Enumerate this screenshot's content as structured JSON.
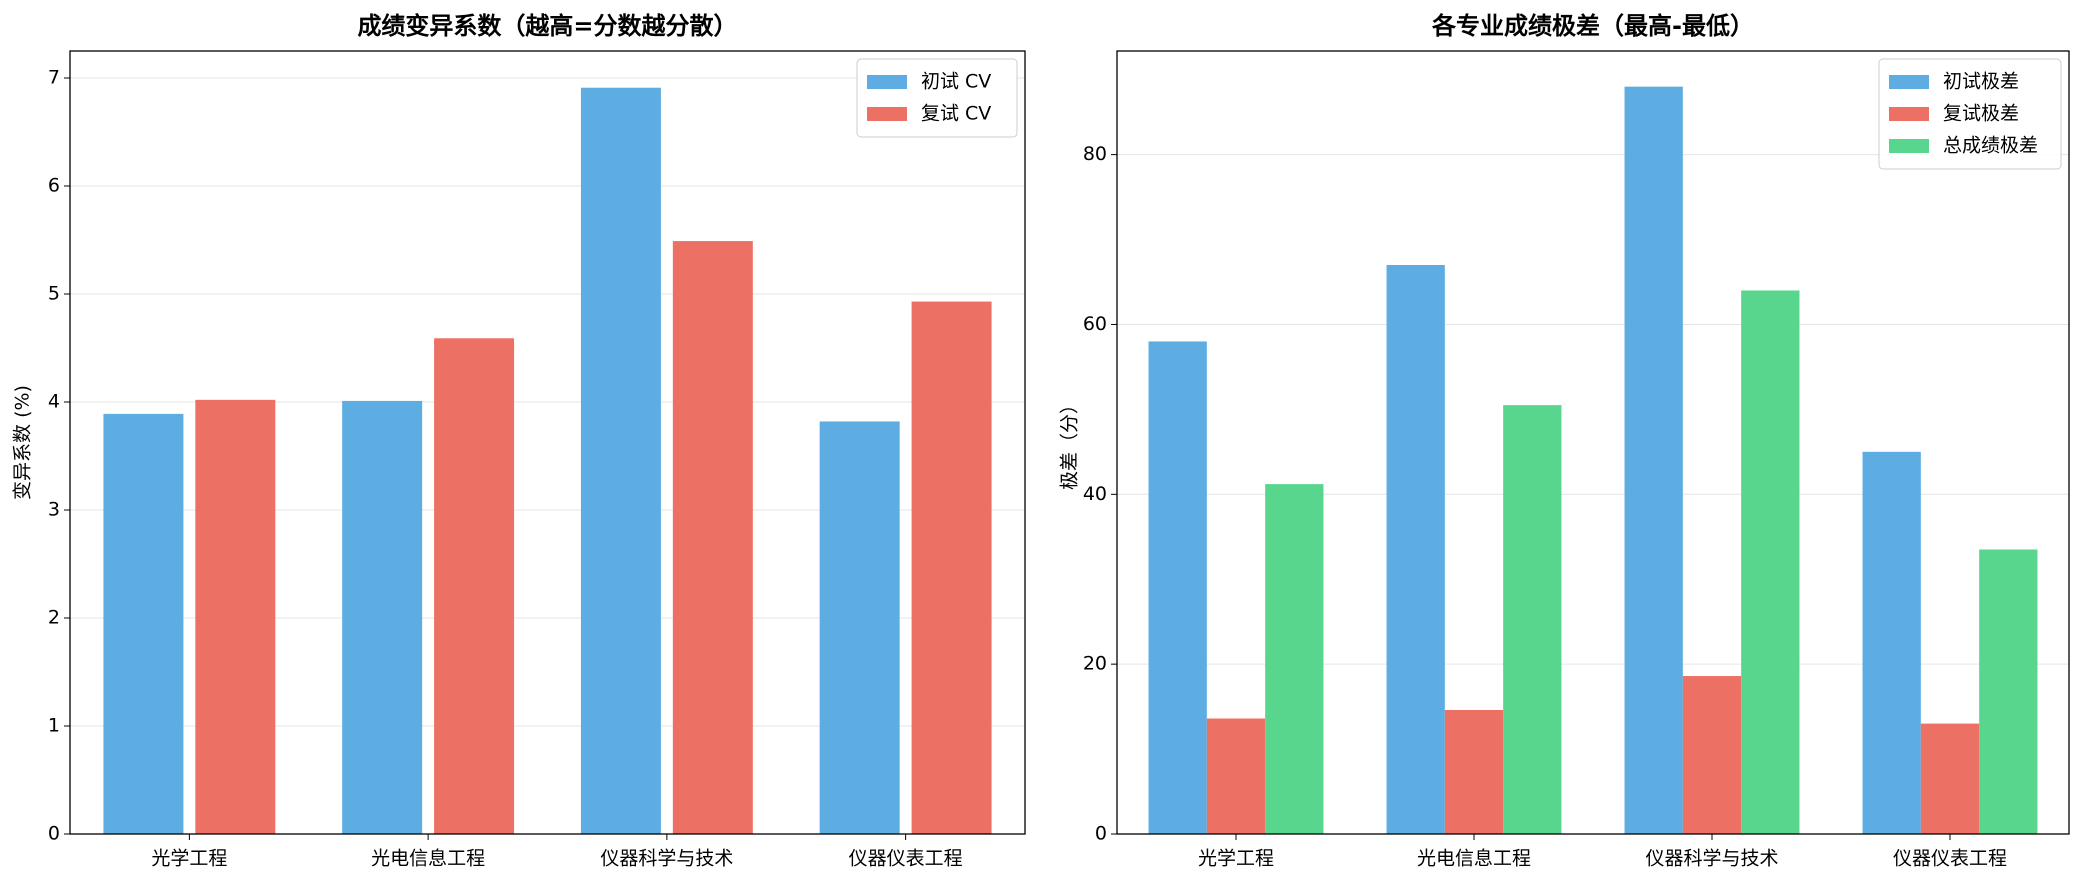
{
  "chart_data": [
    {
      "type": "bar",
      "title": "成绩变异系数（越高=分数越分散）",
      "y_label": "变异系数 (%)",
      "categories": [
        "光学工程",
        "光电信息工程",
        "仪器科学与技术",
        "仪器仪表工程"
      ],
      "series": [
        {
          "name": "初试 CV",
          "color": "#5dade2",
          "values": [
            3.89,
            4.01,
            6.91,
            3.82
          ]
        },
        {
          "name": "复试 CV",
          "color": "#ec7063",
          "values": [
            4.02,
            4.59,
            5.49,
            4.93
          ]
        }
      ],
      "ylim": [
        0,
        7.25
      ],
      "yticks": [
        0,
        1,
        2,
        3,
        4,
        5,
        6,
        7
      ],
      "grid": true,
      "legend": "upper-right"
    },
    {
      "type": "bar",
      "title": "各专业成绩极差（最高-最低）",
      "y_label": "极差（分）",
      "categories": [
        "光学工程",
        "光电信息工程",
        "仪器科学与技术",
        "仪器仪表工程"
      ],
      "series": [
        {
          "name": "初试极差",
          "color": "#5dade2",
          "values": [
            58,
            67,
            88,
            45
          ]
        },
        {
          "name": "复试极差",
          "color": "#ec7063",
          "values": [
            13.6,
            14.6,
            18.6,
            13.0
          ]
        },
        {
          "name": "总成绩极差",
          "color": "#58d68d",
          "values": [
            41.2,
            50.5,
            64.0,
            33.5
          ]
        }
      ],
      "ylim": [
        0,
        92.2
      ],
      "yticks": [
        0,
        20,
        40,
        60,
        80
      ],
      "grid": true,
      "legend": "upper-right"
    }
  ]
}
